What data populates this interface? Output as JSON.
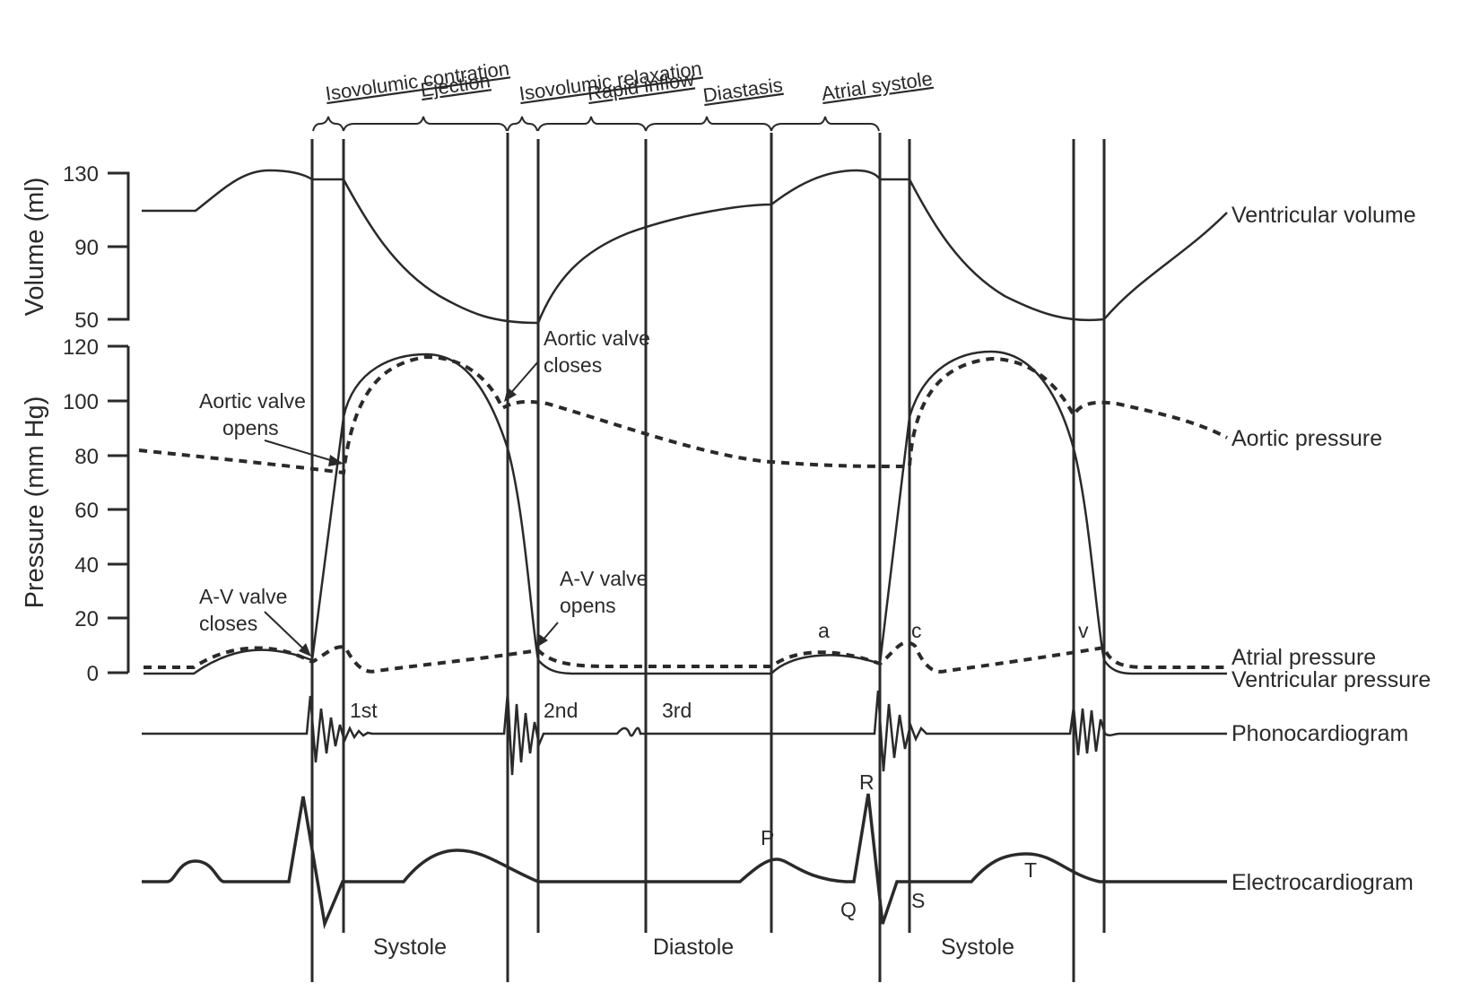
{
  "volume_axis": {
    "title": "Volume (ml)",
    "ticks": [
      "130",
      "90",
      "50"
    ]
  },
  "pressure_axis": {
    "title": "Pressure (mm Hg)",
    "ticks": [
      "120",
      "100",
      "80",
      "60",
      "40",
      "20",
      "0"
    ]
  },
  "phases": [
    "Isovolumic contration",
    "Ejection",
    "Isovolumic relaxation",
    "Rapid inflow",
    "Diastasis",
    "Atrial systole"
  ],
  "annotations": {
    "aortic_opens": [
      "Aortic valve",
      "opens"
    ],
    "aortic_closes": [
      "Aortic valve",
      "closes"
    ],
    "av_closes": [
      "A-V valve",
      "closes"
    ],
    "av_opens": [
      "A-V valve",
      "opens"
    ],
    "wave_a": "a",
    "wave_c": "c",
    "wave_v": "v",
    "sound_1": "1st",
    "sound_2": "2nd",
    "sound_3": "3rd",
    "ecg_p": "P",
    "ecg_q": "Q",
    "ecg_r": "R",
    "ecg_s": "S",
    "ecg_t": "T"
  },
  "traces": {
    "ventricular_volume": "Ventricular volume",
    "aortic_pressure": "Aortic pressure",
    "atrial_pressure": "Atrial pressure",
    "ventricular_pressure": "Ventricular pressure",
    "phonocardiogram": "Phonocardiogram",
    "electrocardiogram": "Electrocardiogram"
  },
  "periods": [
    "Systole",
    "Diastole",
    "Systole"
  ]
}
